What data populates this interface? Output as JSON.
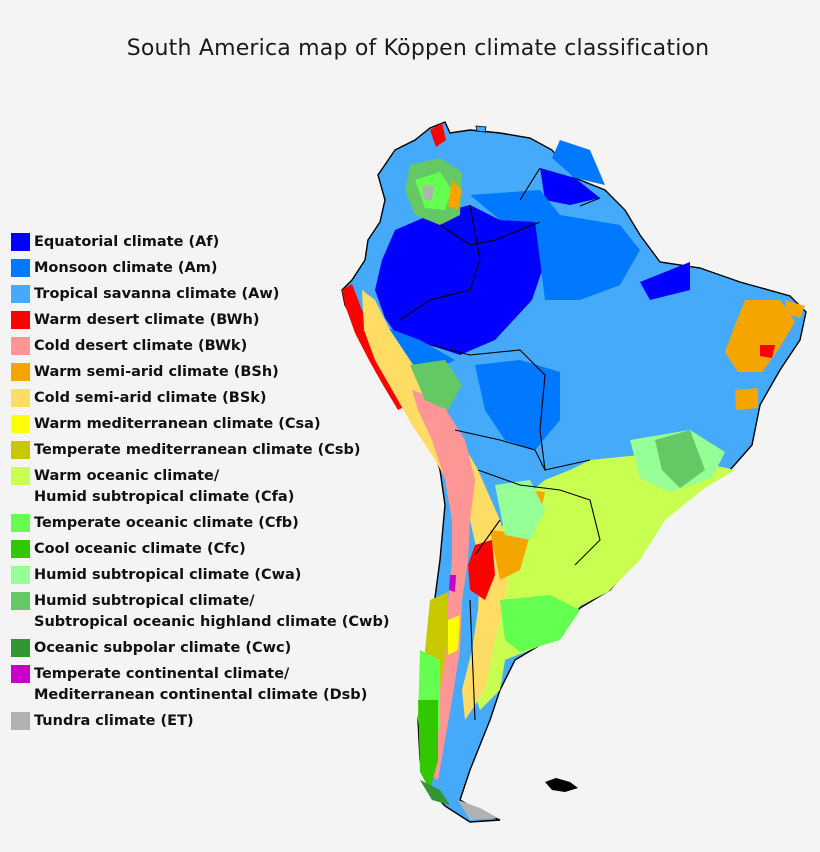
{
  "title": "South America map of Köppen climate classification",
  "legend": [
    {
      "label": "Equatorial climate (Af)",
      "color": "#0000fe"
    },
    {
      "label": "Monsoon climate (Am)",
      "color": "#0078ff"
    },
    {
      "label": "Tropical savanna climate (Aw)",
      "color": "#46aafa"
    },
    {
      "label": "Warm desert climate (BWh)",
      "color": "#ff0000"
    },
    {
      "label": "Cold desert climate (BWk)",
      "color": "#ff9696"
    },
    {
      "label": "Warm semi-arid climate (BSh)",
      "color": "#f5a500"
    },
    {
      "label": "Cold semi-arid climate (BSk)",
      "color": "#ffdc64"
    },
    {
      "label": "Warm mediterranean climate (Csa)",
      "color": "#ffff00"
    },
    {
      "label": "Temperate mediterranean climate (Csb)",
      "color": "#c8c800"
    },
    {
      "label": "Warm oceanic climate/",
      "label2": "Humid subtropical climate (Cfa)",
      "color": "#c8ff50"
    },
    {
      "label": "Temperate oceanic climate (Cfb)",
      "color": "#64ff50"
    },
    {
      "label": "Cool oceanic climate (Cfc)",
      "color": "#32c800"
    },
    {
      "label": "Humid subtropical climate (Cwa)",
      "color": "#96ff96"
    },
    {
      "label": "Humid subtropical climate/",
      "label2": "Subtropical oceanic highland climate (Cwb)",
      "color": "#64c864"
    },
    {
      "label": "Oceanic subpolar climate (Cwc)",
      "color": "#329632"
    },
    {
      "label": "Temperate continental climate/",
      "label2": "Mediterranean continental climate (Dsb)",
      "color": "#c800c8"
    },
    {
      "label": "Tundra climate (ET)",
      "color": "#b2b2b2"
    }
  ]
}
